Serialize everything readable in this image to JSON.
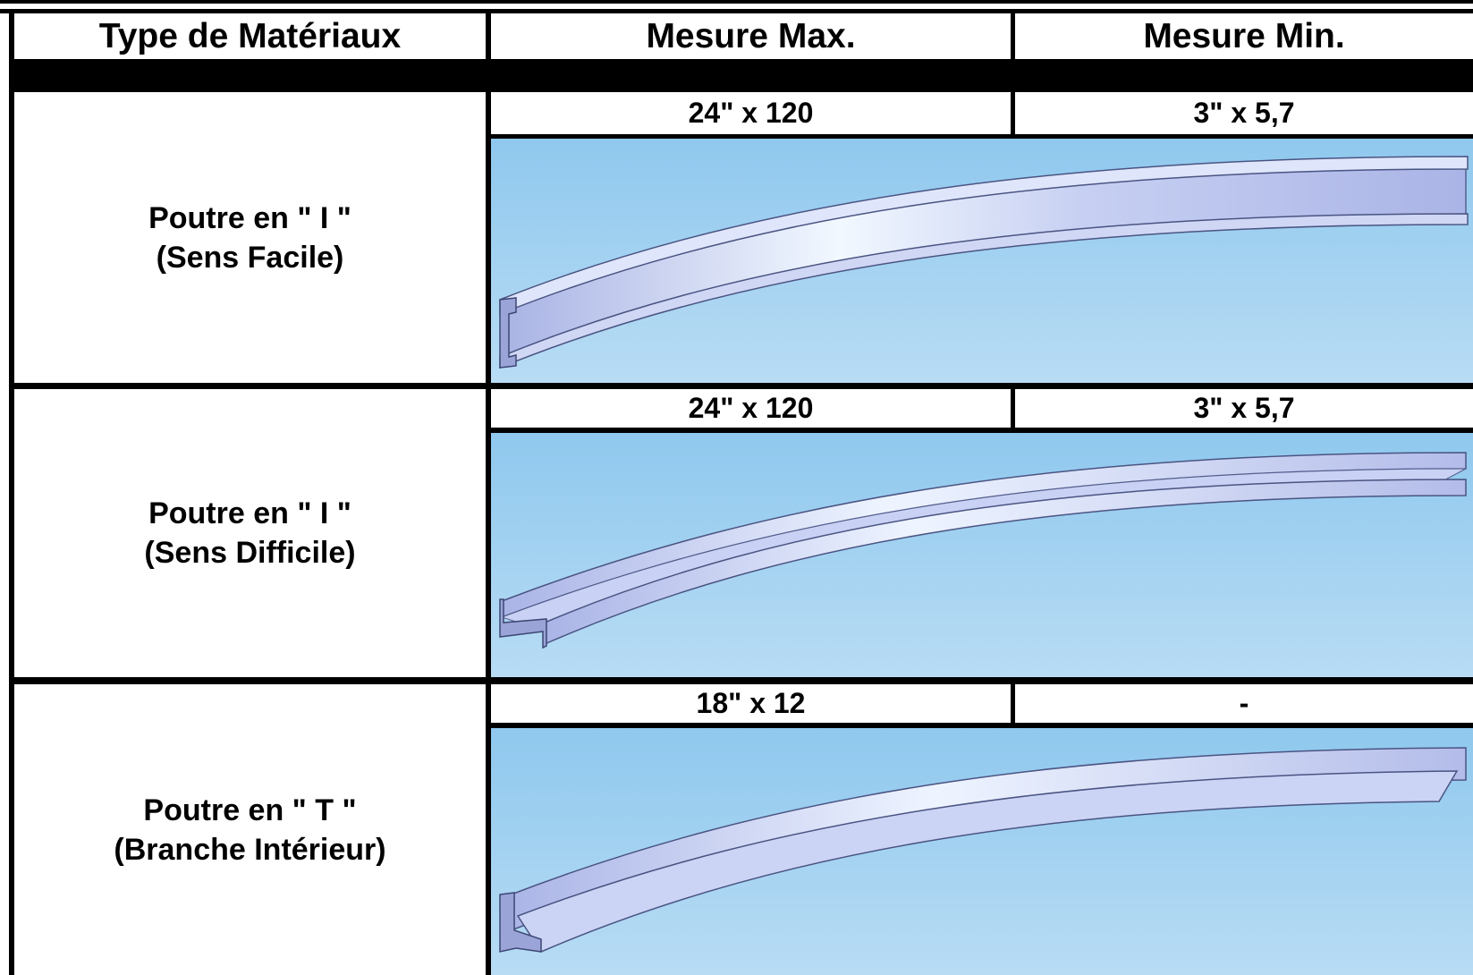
{
  "table": {
    "headers": {
      "material": "Type de Matériaux",
      "max": "Mesure Max.",
      "min": "Mesure Min."
    },
    "rows": [
      {
        "material_line1": "Poutre en \" I \"",
        "material_line2": "(Sens Facile)",
        "max": "24\" x 120",
        "min": "3\" x 5,7",
        "profile": "i-beam-easy-axis"
      },
      {
        "material_line1": "Poutre en \" I \"",
        "material_line2": "(Sens Difficile)",
        "max": "24\" x 120",
        "min": "3\" x 5,7",
        "profile": "i-beam-hard-axis"
      },
      {
        "material_line1": "Poutre en \" T \"",
        "material_line2": "(Branche Intérieur)",
        "max": "18\" x 12",
        "min": "-",
        "profile": "t-beam-inner-flange"
      }
    ]
  },
  "colors": {
    "border": "#000000",
    "sky_top": "#8fc8ee",
    "sky_bottom": "#b8dcf4",
    "steel_light": "#f2f6ff",
    "steel_mid": "#bfc8ee",
    "steel_dark": "#8a95c8"
  }
}
